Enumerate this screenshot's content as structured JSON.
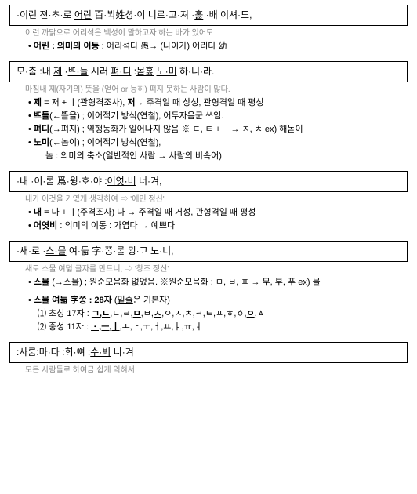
{
  "sections": [
    {
      "box": "·이런 젼·ᄎᆞ·로 <u>어린</u> 百·ᄇᆡᆨ姓셩·이 니르·고·져 ·<u>호ᇙ</u> ·배 이셔·도,",
      "sub": "이런 까닭으로 어리석은 백성이 말하고자 하는 바가 있어도",
      "bullets": [
        "<span class='bold'>어린 : 의미의 이동</span> : 어리석다 愚→ (나이가) 어리다 幼"
      ]
    },
    {
      "box": "ᄆᆞ·ᄎᆞᆷ :내 <u>제</u> ·<u>ᄠᅳ·들</u> 시러 <u>펴·디</u> :<u>몯ᄒᆞᇙ</u> <u>노·미</u> 하·니·라.",
      "sub": "마침내 제(자기의) 뜻을 (얻어 or 능히) 펴지 못하는 사람이 많다.",
      "bullets": [
        "<span class='bold'>제</span> = 저 + ㅣ(관형격조사), <span class='bold'>저→</span> 주격일 때 상성,  관형격일 때 평성",
        "<span class='bold'>ᄠᅳ들</span>(←ᄠᅳᆮ을) ; 이어적기 방식(연철),  어두자음군 쓰임.",
        "<span class='bold'>펴디</span>(→펴지) ; 역행동화가 일어나지 않음   ※ ㄷ, ㅌ + ㅣ→ ㅈ, ㅊ ex) 해돋이",
        "<span class='bold'>노미</span>(←놈이) ; 이어적기 방식(연철),"
      ],
      "extra": "          놈 : 의미의 축소(일반적인 사람 → 사람의 비속어)"
    },
    {
      "box": "·내 ·이·ᄅᆞᆯ 爲·윙·ᄒᆞ·야 :<u>어엿·비</u> 너·겨,",
      "sub": "내가 이것을 가엾게 생각하여 ⇨ '애민 정신'",
      "bullets": [
        "<span class='bold'>내</span> = 나 + ㅣ(주격조사)  나 → 주격일 때 거성,  관형격일 때 평성",
        "<span class='bold'>어엿비</span> : 의미의 이동 : 가엽다 →   예쁘다"
      ]
    },
    {
      "box": "·새·로 ·<u>스·믈</u> 여·듧 字·ᄍᆞᆼ·ᄅᆞᆯ ᄆᆡᇰ·ᄀᆞ 노·니,",
      "sub": "새로 스물 여덟 글자를 만드니, ⇨ '창조 정신'",
      "bullets": [
        "<span class='bold'>스믈</span> (→스물) ; 원순모음화 없었음.   ※원순모음화 : ㅁ, ㅂ, ㅍ → 무,  부,  푸 ex) 물"
      ],
      "bullets2": [
        "<span class='bold'>스믈 여듧 字ᄍᆞᆼ : 28자</span> (<span class='u'>밑줄</span>은 기본자)"
      ],
      "numlist": [
        "⑴ 초성 17자 :  <span class='u'><span class='bold'>ㄱ,ㄴ</span></span>,ㄷ,ㄹ,<span class='u'><span class='bold'>ㅁ</span></span>,ㅂ,<span class='u'><span class='bold'>ㅅ</span></span>,ㅇ,ㅈ,ㅊ,ㅋ,ㅌ,ㅍ,ㅎ,ㆁ,<span class='u'><span class='bold'>ㅇ</span></span>,ㅿ",
        "⑵ 중성 11자 :  <span class='u'><span class='bold'>ㆍ,ㅡ,ㅣ</span></span>,ㅗ,ㅏ,ㅜ,ㅓ,ㅛ,ㅑ,ㅠ,ㅕ"
      ]
    },
    {
      "box": ":사ᄅᆞᆷ:마·다 :ᄒᆡ·ᅇᅧ :<u>수·ᄫᅵ</u> 니·겨",
      "sub": "모든 사람들로 하여금 쉽게 익혀서"
    }
  ]
}
